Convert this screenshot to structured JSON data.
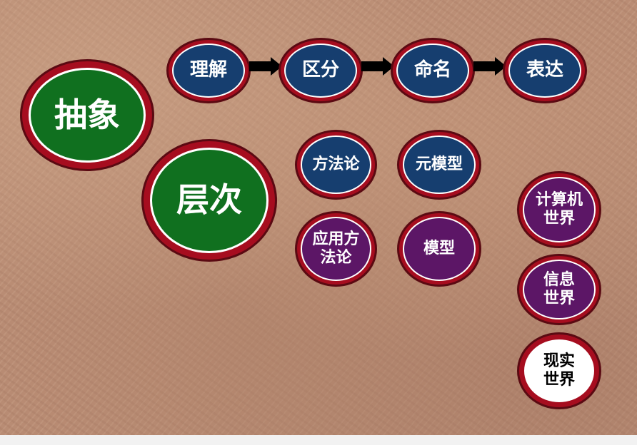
{
  "nodes": {
    "abstraction": "抽象",
    "hierarchy": "层次",
    "understand": "理解",
    "distinguish": "区分",
    "name": "命名",
    "express": "表达",
    "methodology": "方法论",
    "metamodel": "元模型",
    "applied_methodology": "应用方\n法论",
    "model": "模型",
    "computer_world": "计算机\n世界",
    "info_world": "信息\n世界",
    "real_world": "现实\n世界"
  },
  "colors": {
    "ring_red": "#a60d1f",
    "blue": "#163e6f",
    "green": "#10701f",
    "purple": "#5c1666",
    "white": "#ffffff"
  }
}
